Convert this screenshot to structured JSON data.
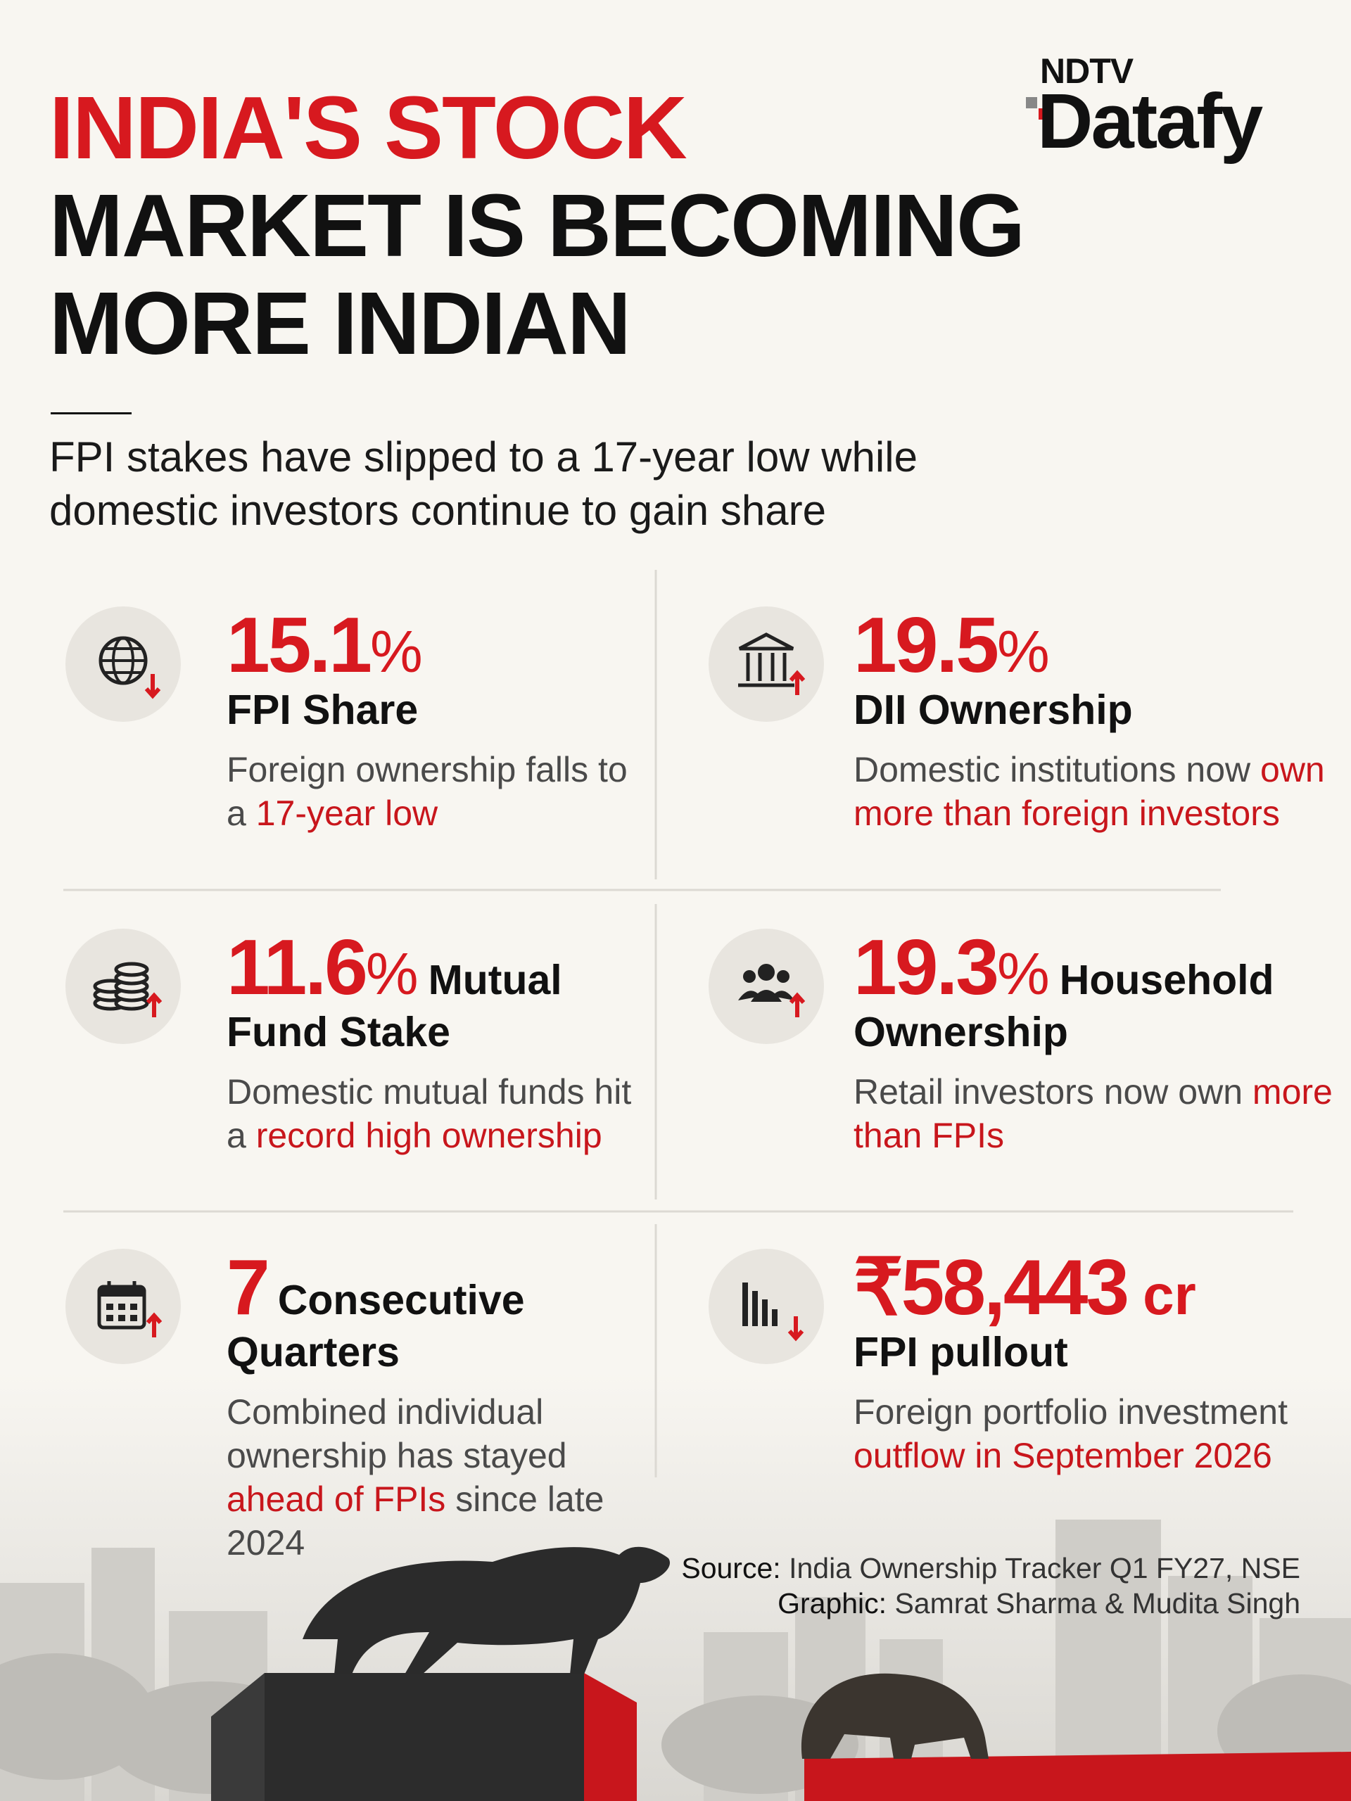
{
  "brand": {
    "line1": "NDTV",
    "line2": "Datafy"
  },
  "title": {
    "line1": "INDIA'S STOCK",
    "line2": "MARKET IS BECOMING",
    "line3": "MORE INDIAN"
  },
  "subtitle": "FPI stakes have slipped to a 17-year low while domestic investors continue to gain share",
  "stats": [
    {
      "value": "15.1",
      "unit": "%",
      "label": "FPI Share",
      "description": [
        {
          "text": "Foreign ownership falls to a ",
          "highlight": false
        },
        {
          "text": "17-year low",
          "highlight": true
        }
      ]
    },
    {
      "value": "19.5",
      "unit": "%",
      "label": "DII Ownership",
      "description": [
        {
          "text": "Domestic institutions now ",
          "highlight": false
        },
        {
          "text": "own more than foreign investors",
          "highlight": true
        }
      ]
    },
    {
      "value": "11.6",
      "unit": "%",
      "label": "Mutual Fund Stake",
      "description": [
        {
          "text": "Domestic mutual funds hit a ",
          "highlight": false
        },
        {
          "text": "record high ownership",
          "highlight": true
        }
      ]
    },
    {
      "value": "19.3",
      "unit": "%",
      "label": "Household Ownership",
      "description": [
        {
          "text": "Retail investors now own ",
          "highlight": false
        },
        {
          "text": "more than FPIs",
          "highlight": true
        }
      ]
    },
    {
      "value": "7",
      "label": "Consecutive Quarters",
      "description": [
        {
          "text": "Combined individual ownership has stayed ",
          "highlight": false
        },
        {
          "text": "ahead of FPIs",
          "highlight": true
        },
        {
          "text": " since late 2024",
          "highlight": false
        }
      ]
    },
    {
      "value": "₹58,443",
      "unit": "cr",
      "label": "FPI pullout",
      "description": [
        {
          "text": "Foreign portfolio investment ",
          "highlight": false
        },
        {
          "text": "outflow in September 2026",
          "highlight": true
        }
      ]
    }
  ],
  "source": {
    "label": "Source:",
    "text": "India Ownership Tracker Q1 FY27, NSE"
  },
  "credit": {
    "label": "Graphic:",
    "text": "Samrat Sharma & Mudita Singh"
  }
}
